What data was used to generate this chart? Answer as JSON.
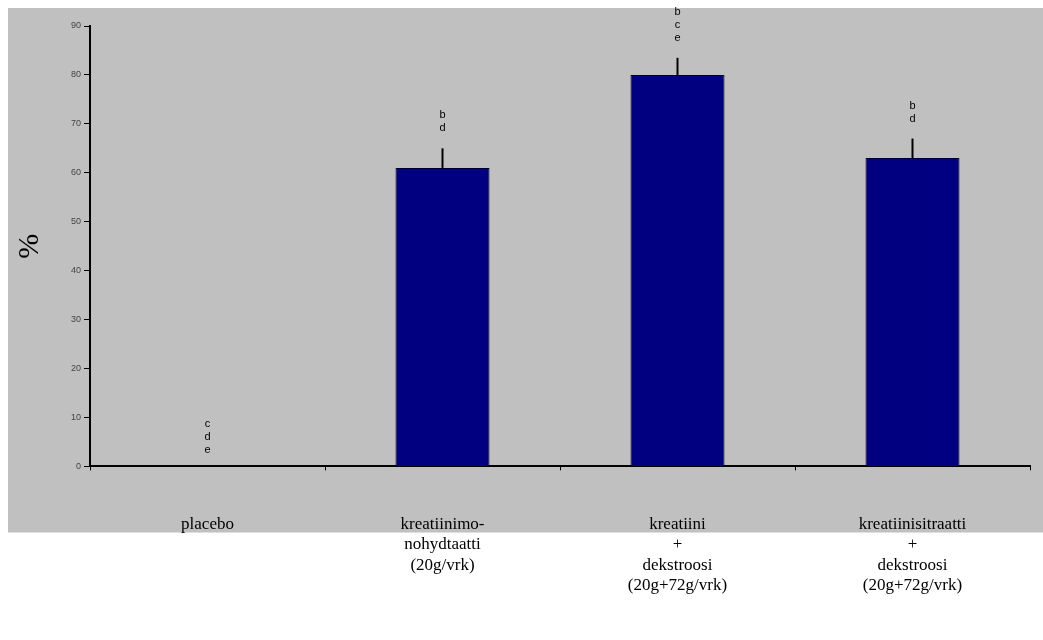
{
  "chart_data": {
    "type": "bar",
    "ylabel": "%",
    "categories": [
      "placebo",
      "kreatiinimo-\nnohydtaatti\n(20g/vrk)",
      "kreatiini\n+\ndekstroosi\n(20g+72g/vrk)",
      "kreatiinisitraatti\n+\ndekstroosi\n(20g+72g/vrk)"
    ],
    "values": [
      0,
      61,
      80,
      63
    ],
    "color": "#000080",
    "errors": [
      null,
      [
        61,
        65
      ],
      [
        80,
        83.5
      ],
      [
        63,
        67
      ]
    ],
    "ylim": [
      0,
      90
    ],
    "yticks": [
      0,
      10,
      20,
      30,
      40,
      50,
      60,
      70,
      80,
      90
    ],
    "grid": false,
    "legend": false,
    "annotations": [
      "c",
      "d",
      "e",
      "b",
      "d",
      "b",
      "c",
      "e",
      "b",
      "d"
    ]
  }
}
